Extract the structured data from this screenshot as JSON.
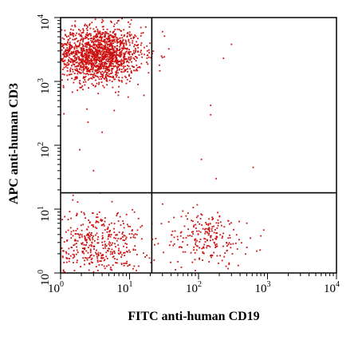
{
  "chart_data": {
    "type": "scatter",
    "xlabel": "FITC anti-human CD19",
    "ylabel": "APC anti-human CD3",
    "xscale": "log",
    "yscale": "log",
    "xlim": [
      1,
      10000
    ],
    "ylim": [
      1,
      10000
    ],
    "x_ticks": [
      {
        "base": "10",
        "exp": "0",
        "value": 1
      },
      {
        "base": "10",
        "exp": "1",
        "value": 10
      },
      {
        "base": "10",
        "exp": "2",
        "value": 100
      },
      {
        "base": "10",
        "exp": "3",
        "value": 1000
      },
      {
        "base": "10",
        "exp": "4",
        "value": 10000
      }
    ],
    "y_ticks": [
      {
        "base": "10",
        "exp": "0",
        "value": 1
      },
      {
        "base": "10",
        "exp": "1",
        "value": 10
      },
      {
        "base": "10",
        "exp": "2",
        "value": 100
      },
      {
        "base": "10",
        "exp": "3",
        "value": 1000
      },
      {
        "base": "10",
        "exp": "4",
        "value": 10000
      }
    ],
    "gates": {
      "x": 21,
      "y": 18
    },
    "grid": false,
    "point_color": "#cc1111",
    "clusters": [
      {
        "center": [
          3.5,
          2600
        ],
        "spread_log": [
          0.32,
          0.22
        ],
        "approx_count": 1600
      },
      {
        "center": [
          3.5,
          2.8
        ],
        "spread_log": [
          0.32,
          0.28
        ],
        "approx_count": 450
      },
      {
        "center": [
          130,
          3.5
        ],
        "spread_log": [
          0.3,
          0.22
        ],
        "approx_count": 220
      }
    ],
    "scattered_points": [
      [
        30,
        6000
      ],
      [
        230,
        2300
      ],
      [
        300,
        3800
      ],
      [
        1.6,
        3.2
      ],
      [
        8,
        6.5
      ],
      [
        150,
        420
      ],
      [
        150,
        300
      ],
      [
        110,
        60
      ],
      [
        180,
        30
      ],
      [
        620,
        45
      ],
      [
        3,
        40
      ],
      [
        1.9,
        85
      ],
      [
        4,
        160
      ],
      [
        2.5,
        230
      ],
      [
        6,
        350
      ],
      [
        500,
        6
      ],
      [
        700,
        2.2
      ],
      [
        50,
        1.5
      ],
      [
        800,
        3.8
      ],
      [
        30,
        12
      ]
    ]
  }
}
